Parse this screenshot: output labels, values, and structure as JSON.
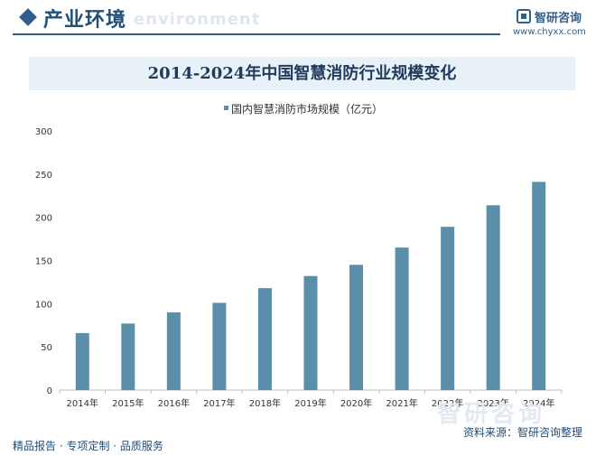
{
  "header": {
    "title": "产业环境",
    "watermark_text": "environment",
    "logo_name": "智研咨询",
    "logo_url": "www.chyxx.com"
  },
  "footer": {
    "left_text": "精品报告 · 专项定制 · 品质服务",
    "source_text": "资料来源：智研咨询整理",
    "watermark": "智研咨询"
  },
  "colors": {
    "bar": "#5b8ea8",
    "brand": "#1f4e79",
    "title_bg": "#e8f0f8"
  },
  "chart_data": {
    "type": "bar",
    "title": "2014-2024年中国智慧消防行业规模变化",
    "categories": [
      "2014年",
      "2015年",
      "2016年",
      "2017年",
      "2018年",
      "2019年",
      "2020年",
      "2021年",
      "2022年",
      "2023年",
      "2024年"
    ],
    "series": [
      {
        "name": "国内智慧消防市场规模（亿元）",
        "values": [
          66,
          77,
          90,
          101,
          118,
          132,
          145,
          165,
          189,
          214,
          241
        ]
      }
    ],
    "ylim": [
      0,
      300
    ],
    "yticks": [
      0,
      50,
      100,
      150,
      200,
      250,
      300
    ],
    "grid": false,
    "legend_position": "top-center"
  }
}
